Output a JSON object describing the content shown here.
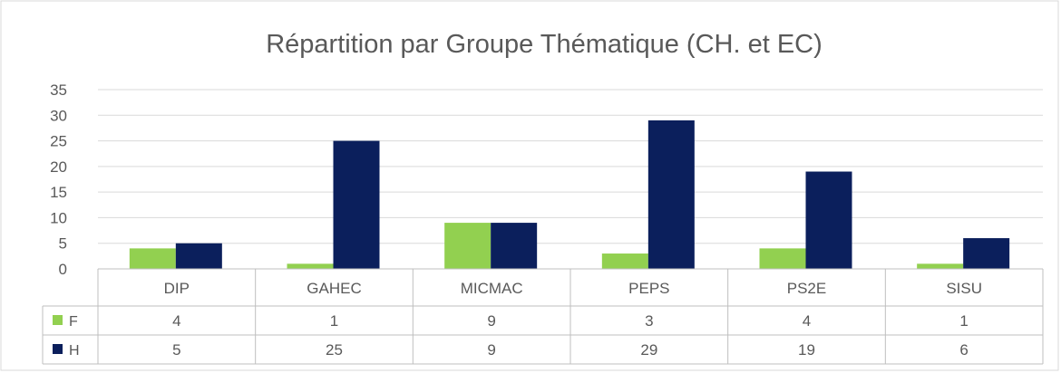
{
  "chart_data": {
    "type": "bar",
    "title": "Répartition par Groupe Thématique (CH. et EC)",
    "categories": [
      "DIP",
      "GAHEC",
      "MICMAC",
      "PEPS",
      "PS2E",
      "SISU"
    ],
    "series": [
      {
        "name": "F",
        "values": [
          4,
          1,
          9,
          3,
          4,
          1
        ],
        "color": "#92d050"
      },
      {
        "name": "H",
        "values": [
          5,
          25,
          9,
          29,
          19,
          6
        ],
        "color": "#0b1f5c"
      }
    ],
    "yticks": [
      "0",
      "5",
      "10",
      "15",
      "20",
      "25",
      "30",
      "35"
    ],
    "ylim": [
      0,
      35
    ],
    "grid": true,
    "legend": "data-table"
  }
}
